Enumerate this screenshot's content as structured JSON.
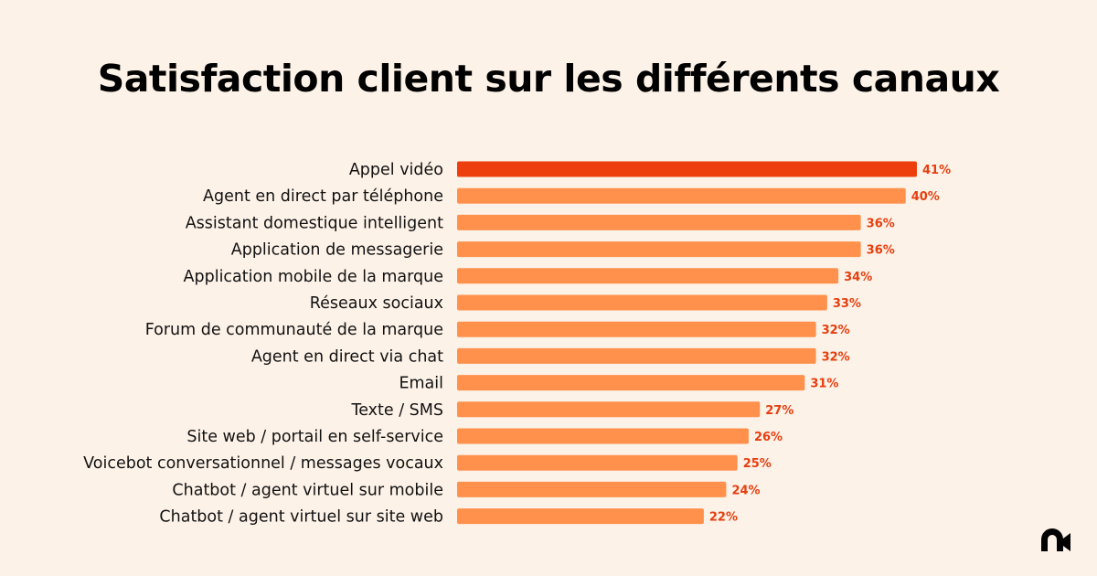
{
  "chart_data": {
    "type": "bar",
    "orientation": "horizontal",
    "title": "Satisfaction client sur les différents canaux",
    "categories": [
      "Appel vidéo",
      "Agent en direct par téléphone",
      "Assistant domestique intelligent",
      "Application de messagerie",
      "Application mobile de la marque",
      "Réseaux sociaux",
      "Forum de communauté de la marque",
      "Agent en direct via chat",
      "Email",
      "Texte / SMS",
      "Site web / portail en self-service",
      "Voicebot conversationnel / messages vocaux",
      "Chatbot / agent virtuel sur mobile",
      "Chatbot / agent virtuel sur site web"
    ],
    "values": [
      41,
      40,
      36,
      36,
      34,
      33,
      32,
      32,
      31,
      27,
      26,
      25,
      24,
      22
    ],
    "value_labels": [
      "41%",
      "40%",
      "36%",
      "36%",
      "34%",
      "33%",
      "32%",
      "32%",
      "31%",
      "27%",
      "26%",
      "25%",
      "24%",
      "22%"
    ],
    "unit": "%",
    "xlim": [
      0,
      41
    ],
    "grid": false,
    "colors": {
      "highlight": "#ec3f0d",
      "default": "#ff914d",
      "value_label": "#e63e0e",
      "background": "#fdf2e8"
    }
  },
  "logo": {
    "icon": "brand-logo-icon"
  }
}
